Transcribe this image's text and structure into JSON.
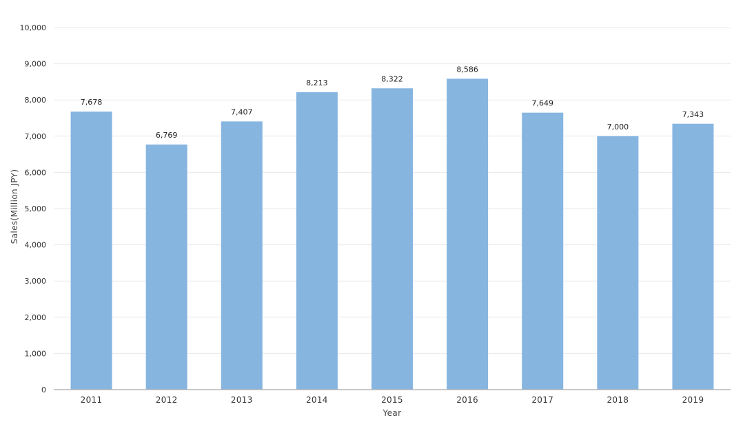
{
  "chart_data": {
    "type": "bar",
    "title": "",
    "xlabel": "Year",
    "ylabel": "Sales(Million JPY)",
    "categories": [
      "2011",
      "2012",
      "2013",
      "2014",
      "2015",
      "2016",
      "2017",
      "2018",
      "2019"
    ],
    "values": [
      7678,
      6769,
      7407,
      8213,
      8322,
      8586,
      7649,
      7000,
      7343
    ],
    "value_labels": [
      "7,678",
      "6,769",
      "7,407",
      "8,213",
      "8,322",
      "8,586",
      "7,649",
      "7,000",
      "7,343"
    ],
    "ylim": [
      0,
      10000
    ],
    "yticks": [
      0,
      1000,
      2000,
      3000,
      4000,
      5000,
      6000,
      7000,
      8000,
      9000,
      10000
    ],
    "ytick_labels": [
      "0",
      "1,000",
      "2,000",
      "3,000",
      "4,000",
      "5,000",
      "6,000",
      "7,000",
      "8,000",
      "9,000",
      "10,000"
    ],
    "grid": true,
    "legend": "none",
    "bar_color": "#86b5e0"
  }
}
